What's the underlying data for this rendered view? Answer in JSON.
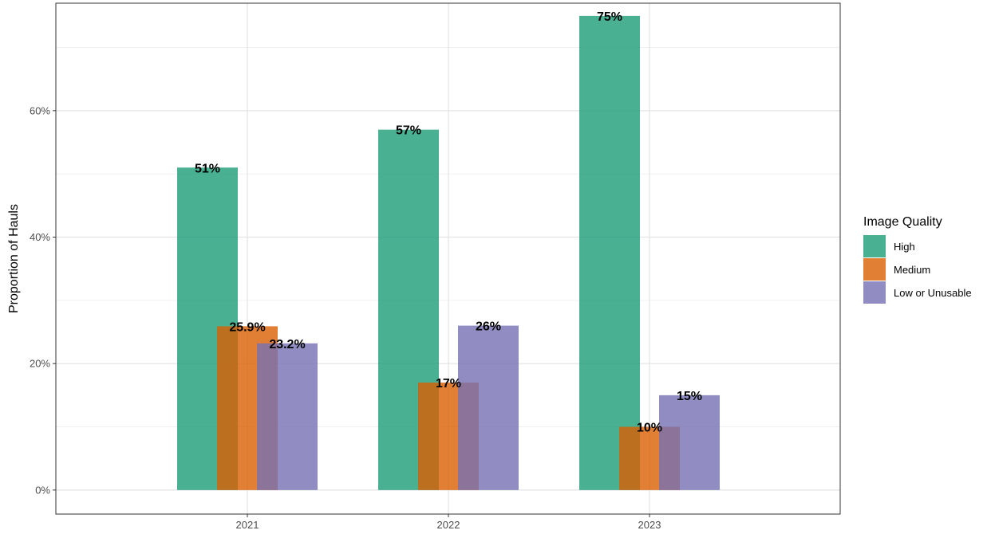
{
  "chart_data": {
    "type": "bar",
    "title": "",
    "xlabel": "",
    "ylabel": "Proportion of Hauls",
    "categories": [
      "2021",
      "2022",
      "2023"
    ],
    "ylim": [
      -3.8,
      77
    ],
    "yticks": [
      {
        "value": 0,
        "label": "0%"
      },
      {
        "value": 20,
        "label": "20%"
      },
      {
        "value": 40,
        "label": "40%"
      },
      {
        "value": 60,
        "label": "60%"
      }
    ],
    "grid": true,
    "legend": {
      "title": "Image Quality",
      "position": "right"
    },
    "series": [
      {
        "name": "High",
        "color": "#1b9e77",
        "values": [
          51,
          57,
          75
        ],
        "labels": [
          "51%",
          "57%",
          "75%"
        ]
      },
      {
        "name": "Medium",
        "color": "#d95f02",
        "values": [
          25.9,
          17,
          10
        ],
        "labels": [
          "25.9%",
          "17%",
          "10%"
        ]
      },
      {
        "name": "Low or Unusable",
        "color": "#7570b3",
        "values": [
          23.2,
          26,
          15
        ],
        "labels": [
          "23.2%",
          "26%",
          "15%"
        ]
      }
    ]
  }
}
